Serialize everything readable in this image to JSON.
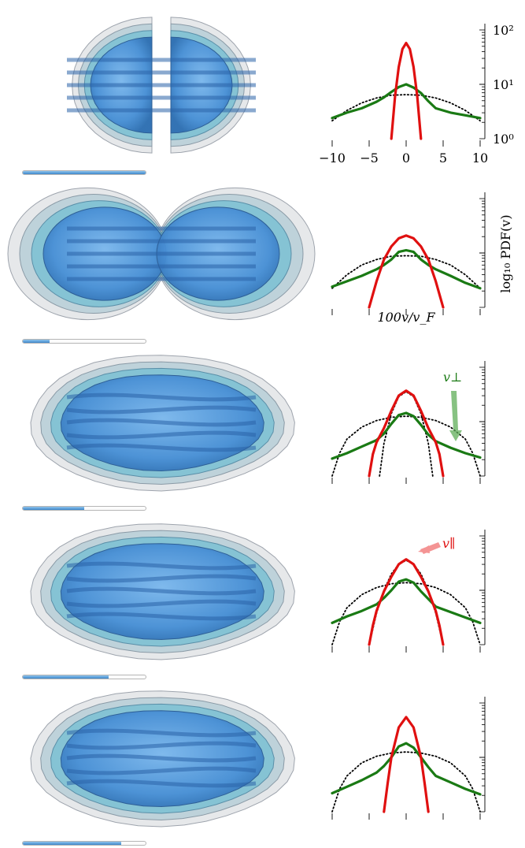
{
  "figure": {
    "ylabel": "log₁₀ PDF(v)",
    "xlabel": "100v/v_F",
    "colors": {
      "parallel": "#e01010",
      "perpendicular": "#1a7a14",
      "reference": "#000000",
      "blob_fill": "#4a90d6",
      "blob_shell": "#b8bcc4",
      "progress": "#5a9fe0"
    }
  },
  "rows": [
    {
      "split": "two",
      "progress": 1.0
    },
    {
      "split": "pinched",
      "progress": 0.22
    },
    {
      "split": "none",
      "progress": 0.5
    },
    {
      "split": "none",
      "progress": 0.7
    },
    {
      "split": "none",
      "progress": 0.8
    }
  ],
  "chart_data": [
    {
      "type": "line",
      "xlim": [
        -10,
        10
      ],
      "ylim": [
        0,
        2
      ],
      "ylog": true,
      "xticks": [
        -10,
        -5,
        0,
        5,
        10
      ],
      "xtick_labels": [
        "−10",
        "−5",
        "0",
        "5",
        "10"
      ],
      "ytick_labels": [
        "10⁰",
        "10¹",
        "10²"
      ],
      "series": [
        {
          "role": "reference",
          "x": [
            -10,
            -8,
            -6,
            -4,
            -2,
            0,
            2,
            4,
            6,
            8,
            10
          ],
          "y": [
            0.33,
            0.52,
            0.66,
            0.75,
            0.8,
            0.81,
            0.8,
            0.75,
            0.66,
            0.52,
            0.33
          ]
        },
        {
          "role": "perpendicular",
          "x": [
            -10,
            -8,
            -6,
            -4,
            -3,
            -2,
            -1,
            0,
            1,
            2,
            3,
            4,
            6,
            8,
            10
          ],
          "y": [
            0.38,
            0.48,
            0.56,
            0.68,
            0.76,
            0.86,
            0.95,
            1.0,
            0.94,
            0.84,
            0.69,
            0.56,
            0.48,
            0.43,
            0.38
          ]
        },
        {
          "role": "reference",
          "x": [
            -2.0,
            -1.5,
            -1.0,
            -0.5,
            0,
            0.5,
            1.0,
            1.5,
            2.0
          ],
          "y": [
            0.05,
            0.82,
            1.34,
            1.66,
            1.76,
            1.66,
            1.34,
            0.82,
            0.05
          ]
        },
        {
          "role": "parallel",
          "x": [
            -2.0,
            -1.5,
            -1.0,
            -0.5,
            0,
            0.5,
            1.0,
            1.5,
            2.0
          ],
          "y": [
            0.0,
            0.78,
            1.32,
            1.65,
            1.76,
            1.65,
            1.32,
            0.78,
            0.0
          ]
        }
      ]
    },
    {
      "type": "line",
      "xlim": [
        -10,
        10
      ],
      "ylim": [
        0,
        2
      ],
      "ylog": true,
      "xticks": [
        -10,
        -5,
        0,
        5,
        10
      ],
      "series": [
        {
          "role": "reference",
          "x": [
            -10,
            -8,
            -6,
            -4,
            -2,
            0,
            2,
            4,
            6,
            8,
            10
          ],
          "y": [
            0.35,
            0.6,
            0.78,
            0.88,
            0.94,
            0.95,
            0.94,
            0.88,
            0.78,
            0.6,
            0.35
          ]
        },
        {
          "role": "perpendicular",
          "x": [
            -10,
            -8,
            -6,
            -4,
            -3,
            -2,
            -1,
            0,
            1,
            2,
            3,
            4,
            6,
            8,
            10
          ],
          "y": [
            0.38,
            0.48,
            0.58,
            0.7,
            0.78,
            0.88,
            1.02,
            1.05,
            1.02,
            0.88,
            0.78,
            0.7,
            0.58,
            0.45,
            0.35
          ]
        },
        {
          "role": "reference",
          "x": [
            -5,
            -4,
            -3,
            -2,
            -1,
            0,
            1,
            2,
            3,
            4,
            5
          ],
          "y": [
            0.0,
            0.5,
            0.88,
            1.12,
            1.27,
            1.32,
            1.27,
            1.12,
            0.88,
            0.5,
            0.0
          ]
        },
        {
          "role": "parallel",
          "x": [
            -5,
            -4,
            -3,
            -2,
            -1,
            0,
            1,
            2,
            3,
            4,
            5
          ],
          "y": [
            0.0,
            0.48,
            0.88,
            1.12,
            1.27,
            1.32,
            1.27,
            1.12,
            0.88,
            0.48,
            0.0
          ]
        }
      ]
    },
    {
      "type": "line",
      "xlim": [
        -10,
        10
      ],
      "ylim": [
        0,
        2
      ],
      "ylog": true,
      "xticks": [
        -10,
        -5,
        0,
        5,
        10
      ],
      "annotation": "v⊥",
      "series": [
        {
          "role": "reference",
          "x": [
            -10,
            -9,
            -8,
            -6,
            -4,
            -2,
            0,
            2,
            4,
            6,
            8,
            9,
            10
          ],
          "y": [
            0.0,
            0.42,
            0.68,
            0.9,
            1.02,
            1.08,
            1.1,
            1.08,
            1.02,
            0.9,
            0.68,
            0.42,
            0.0
          ]
        },
        {
          "role": "reference",
          "x": [
            -3.6,
            -3,
            -2,
            -1,
            0,
            1,
            2,
            3,
            3.6
          ],
          "y": [
            0.0,
            0.6,
            1.15,
            1.46,
            1.55,
            1.46,
            1.15,
            0.6,
            0.0
          ]
        },
        {
          "role": "perpendicular",
          "x": [
            -10,
            -8,
            -6,
            -4,
            -3,
            -2,
            -1,
            0,
            1,
            2,
            3,
            4,
            6,
            8,
            10
          ],
          "y": [
            0.32,
            0.42,
            0.54,
            0.66,
            0.78,
            0.96,
            1.12,
            1.16,
            1.1,
            0.94,
            0.76,
            0.64,
            0.52,
            0.42,
            0.34
          ]
        },
        {
          "role": "parallel",
          "x": [
            -5,
            -4.5,
            -4,
            -3,
            -2,
            -1,
            0,
            1,
            2,
            3,
            4,
            4.5,
            5
          ],
          "y": [
            0.0,
            0.4,
            0.62,
            0.88,
            1.2,
            1.48,
            1.57,
            1.48,
            1.2,
            0.88,
            0.62,
            0.4,
            0.0
          ]
        }
      ]
    },
    {
      "type": "line",
      "xlim": [
        -10,
        10
      ],
      "ylim": [
        0,
        2
      ],
      "ylog": true,
      "xticks": [
        -10,
        -5,
        0,
        5,
        10
      ],
      "annotation": "v∥",
      "series": [
        {
          "role": "reference",
          "x": [
            -10,
            -9,
            -8,
            -6,
            -4,
            -2,
            0,
            2,
            4,
            6,
            8,
            9,
            10
          ],
          "y": [
            0.0,
            0.42,
            0.68,
            0.92,
            1.05,
            1.12,
            1.14,
            1.12,
            1.05,
            0.92,
            0.68,
            0.42,
            0.0
          ]
        },
        {
          "role": "reference",
          "x": [
            -5,
            -4,
            -3,
            -2,
            -1,
            0,
            1,
            2,
            3,
            4,
            5
          ],
          "y": [
            0.0,
            0.58,
            1.0,
            1.3,
            1.48,
            1.55,
            1.48,
            1.3,
            1.0,
            0.58,
            0.0
          ]
        },
        {
          "role": "perpendicular",
          "x": [
            -10,
            -8,
            -6,
            -4,
            -3,
            -2,
            -1,
            0,
            1,
            2,
            3,
            4,
            6,
            8,
            10
          ],
          "y": [
            0.4,
            0.52,
            0.62,
            0.74,
            0.86,
            1.0,
            1.16,
            1.2,
            1.14,
            0.98,
            0.84,
            0.7,
            0.6,
            0.5,
            0.4
          ]
        },
        {
          "role": "parallel",
          "x": [
            -5,
            -4.5,
            -4,
            -3,
            -2,
            -1,
            0,
            1,
            2,
            3,
            4,
            4.5,
            5
          ],
          "y": [
            0.0,
            0.35,
            0.62,
            0.98,
            1.25,
            1.48,
            1.57,
            1.48,
            1.25,
            0.98,
            0.62,
            0.35,
            0.0
          ]
        }
      ]
    },
    {
      "type": "line",
      "xlim": [
        -10,
        10
      ],
      "ylim": [
        0,
        2
      ],
      "ylog": true,
      "xticks": [
        -10,
        -5,
        0,
        5,
        10
      ],
      "series": [
        {
          "role": "reference",
          "x": [
            -10,
            -9,
            -8,
            -6,
            -4,
            -2,
            0,
            2,
            4,
            6,
            8,
            9,
            10
          ],
          "y": [
            0.0,
            0.42,
            0.66,
            0.9,
            1.02,
            1.08,
            1.1,
            1.08,
            1.02,
            0.9,
            0.66,
            0.42,
            0.0
          ]
        },
        {
          "role": "perpendicular",
          "x": [
            -10,
            -8,
            -6,
            -4,
            -3,
            -2,
            -1,
            0,
            1,
            2,
            3,
            4,
            6,
            8,
            10
          ],
          "y": [
            0.34,
            0.46,
            0.58,
            0.72,
            0.84,
            1.0,
            1.2,
            1.26,
            1.18,
            1.0,
            0.82,
            0.66,
            0.54,
            0.42,
            0.32
          ]
        },
        {
          "role": "reference",
          "x": [
            -3,
            -2.5,
            -2,
            -1,
            0,
            1,
            2,
            2.5,
            3
          ],
          "y": [
            0.0,
            0.55,
            1.02,
            1.55,
            1.74,
            1.55,
            1.02,
            0.55,
            0.0
          ]
        },
        {
          "role": "parallel",
          "x": [
            -3,
            -2.5,
            -2,
            -1,
            0,
            1,
            2,
            2.5,
            3
          ],
          "y": [
            0.0,
            0.52,
            1.0,
            1.55,
            1.74,
            1.55,
            1.0,
            0.52,
            0.0
          ]
        }
      ]
    }
  ]
}
